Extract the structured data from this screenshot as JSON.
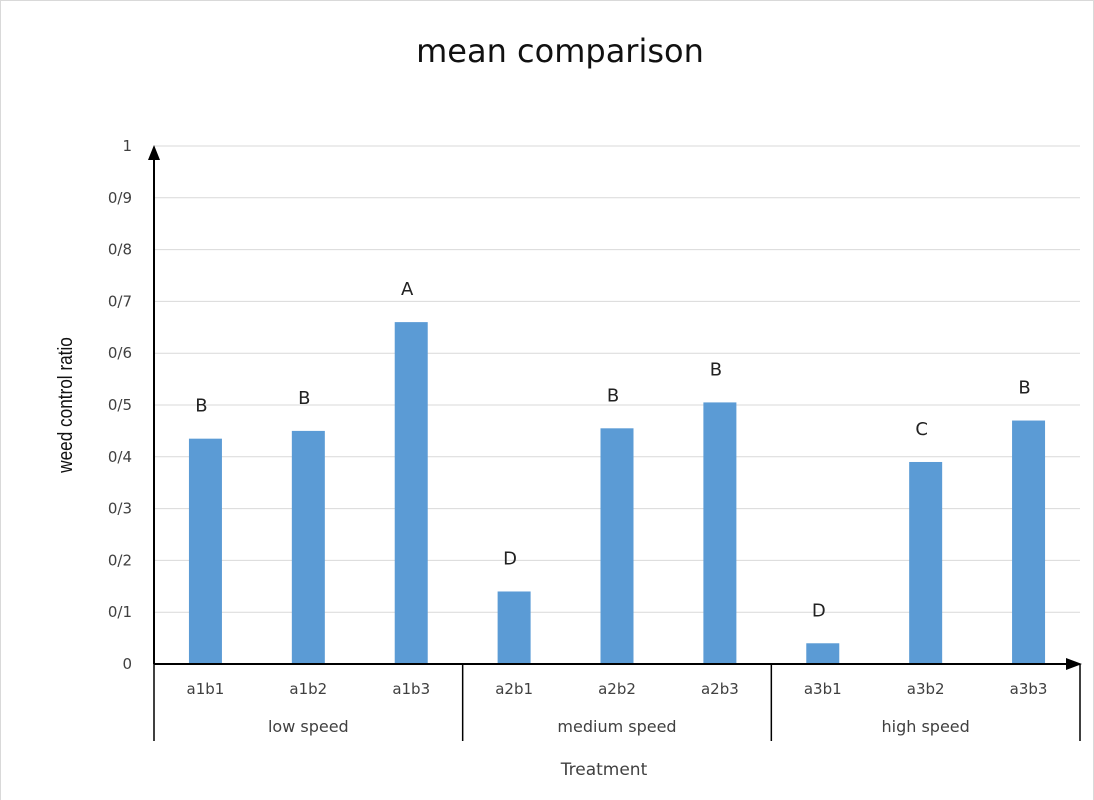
{
  "chart_data": {
    "type": "bar",
    "title": "mean comparison",
    "xlabel": "Treatment",
    "ylabel": "weed control ratio",
    "ylim": [
      0,
      1
    ],
    "y_ticks": [
      0,
      0.1,
      0.2,
      0.3,
      0.4,
      0.5,
      0.6,
      0.7,
      0.8,
      0.9,
      1
    ],
    "y_tick_labels": [
      "0",
      "0/1",
      "0/2",
      "0/3",
      "0/4",
      "0/5",
      "0/6",
      "0/7",
      "0/8",
      "0/9",
      "1"
    ],
    "grid": true,
    "legend": "none",
    "bar_color": "#5b9bd5",
    "categories": [
      "a1b1",
      "a1b2",
      "a1b3",
      "a2b1",
      "a2b2",
      "a2b3",
      "a3b1",
      "a3b2",
      "a3b3"
    ],
    "values": [
      0.435,
      0.45,
      0.66,
      0.14,
      0.455,
      0.505,
      0.04,
      0.39,
      0.47
    ],
    "significance_letters": [
      "B",
      "B",
      "A",
      "D",
      "B",
      "B",
      "D",
      "C",
      "B"
    ],
    "groups": [
      {
        "label": "low speed",
        "categories": [
          "a1b1",
          "a1b2",
          "a1b3"
        ]
      },
      {
        "label": "medium speed",
        "categories": [
          "a2b1",
          "a2b2",
          "a2b3"
        ]
      },
      {
        "label": "high speed",
        "categories": [
          "a3b1",
          "a3b2",
          "a3b3"
        ]
      }
    ]
  }
}
